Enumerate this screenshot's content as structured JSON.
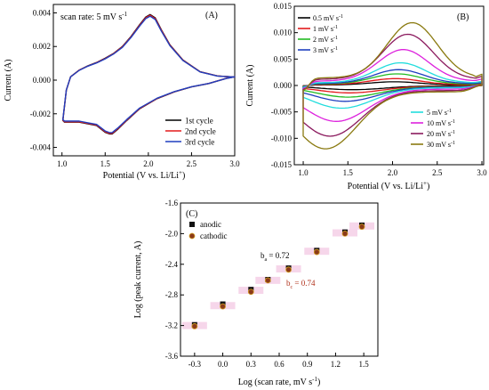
{
  "chart_data": [
    {
      "panel": "(A)",
      "type": "line",
      "annotation": "scan rate: 5 mV s",
      "annotation_sup": "-1",
      "xlabel": "Potential (V vs. Li/Li",
      "xlabel_sup": "+",
      "xlabel_end": ")",
      "ylabel": "Current (A)",
      "xlim": [
        0.9,
        3.0
      ],
      "ylim": [
        -0.0045,
        0.0045
      ],
      "xticks": [
        "1.0",
        "1.5",
        "2.0",
        "2.5",
        "3.0"
      ],
      "yticks": [
        "-0.004",
        "-0.002",
        "0.000",
        "0.002",
        "0.004"
      ],
      "legend": "bottom-right",
      "series": [
        {
          "name": "1st cycle",
          "color": "#000000",
          "scale": 1.0
        },
        {
          "name": "2nd cycle",
          "color": "#e31a1c",
          "scale": 0.99
        },
        {
          "name": "3rd cycle",
          "color": "#1f3fbf",
          "scale": 0.975
        }
      ],
      "upper_branch": {
        "x": [
          1.01,
          1.05,
          1.1,
          1.2,
          1.3,
          1.4,
          1.5,
          1.6,
          1.7,
          1.8,
          1.9,
          1.97,
          2.02,
          2.08,
          2.15,
          2.25,
          2.4,
          2.6,
          2.8,
          2.95,
          3.0
        ],
        "y": [
          -0.0024,
          -0.0006,
          0.0002,
          0.0006,
          0.00085,
          0.00105,
          0.0013,
          0.0016,
          0.002,
          0.0026,
          0.0033,
          0.00375,
          0.0039,
          0.0037,
          0.003,
          0.0021,
          0.0012,
          0.0005,
          0.00025,
          0.0002,
          0.0002
        ]
      },
      "lower_branch": {
        "x": [
          3.0,
          2.9,
          2.7,
          2.5,
          2.3,
          2.1,
          1.9,
          1.75,
          1.65,
          1.58,
          1.55,
          1.5,
          1.4,
          1.3,
          1.2,
          1.1,
          1.03,
          1.01
        ],
        "y": [
          0.0002,
          0.0001,
          -0.0002,
          -0.0004,
          -0.0007,
          -0.0011,
          -0.0017,
          -0.0024,
          -0.0029,
          -0.0032,
          -0.0032,
          -0.0031,
          -0.0027,
          -0.0026,
          -0.0025,
          -0.0025,
          -0.0025,
          -0.0024
        ]
      }
    },
    {
      "panel": "(B)",
      "type": "line",
      "xlabel": "Potential (V vs. Li/Li",
      "xlabel_sup": "+",
      "xlabel_end": ")",
      "ylabel": "Current (A)",
      "xlim": [
        0.9,
        3.02
      ],
      "ylim": [
        -0.015,
        0.015
      ],
      "xticks": [
        "1.0",
        "1.5",
        "2.0",
        "2.5",
        "3.0"
      ],
      "yticks": [
        "-0.015",
        "-0.010",
        "-0.005",
        "0.000",
        "0.005",
        "0.010",
        "0.015"
      ],
      "legend_left_entries": [
        "0.5",
        "1",
        "2",
        "3"
      ],
      "legend_right_entries": [
        "5",
        "10",
        "20",
        "30"
      ],
      "legend_unit": "mV s",
      "legend_unit_sup": "-1",
      "series": [
        {
          "name": "0.5",
          "color": "#000000",
          "ip": 0.0007,
          "in": -0.0008,
          "pa": 2.02,
          "pc": 1.55
        },
        {
          "name": "1",
          "color": "#e31a1c",
          "ip": 0.0013,
          "in": -0.0014,
          "pa": 2.03,
          "pc": 1.52
        },
        {
          "name": "2",
          "color": "#22bb22",
          "ip": 0.0022,
          "in": -0.0022,
          "pa": 2.05,
          "pc": 1.5
        },
        {
          "name": "3",
          "color": "#1f3fbf",
          "ip": 0.003,
          "in": -0.003,
          "pa": 2.07,
          "pc": 1.47
        },
        {
          "name": "5",
          "color": "#22dddd",
          "ip": 0.0043,
          "in": -0.0043,
          "pa": 2.09,
          "pc": 1.43
        },
        {
          "name": "10",
          "color": "#dd22dd",
          "ip": 0.0068,
          "in": -0.0068,
          "pa": 2.12,
          "pc": 1.37
        },
        {
          "name": "20",
          "color": "#8b1a5e",
          "ip": 0.0097,
          "in": -0.0096,
          "pa": 2.17,
          "pc": 1.3
        },
        {
          "name": "30",
          "color": "#8a7a10",
          "ip": 0.0119,
          "in": -0.012,
          "pa": 2.22,
          "pc": 1.25
        }
      ]
    },
    {
      "panel": "(C)",
      "type": "scatter",
      "xlabel": "Log (scan rate, mV s",
      "xlabel_sup": "-1",
      "xlabel_end": ")",
      "ylabel": "Log (peak current, A)",
      "xlim": [
        -0.45,
        1.65
      ],
      "ylim": [
        -3.6,
        -1.6
      ],
      "xticks": [
        "-0.3",
        "0.0",
        "0.3",
        "0.6",
        "0.9",
        "1.2",
        "1.5"
      ],
      "yticks": [
        "-1.6",
        "-2.0",
        "-2.4",
        "-2.8",
        "-3.2",
        "-3.6"
      ],
      "legend": "top-left",
      "series": [
        {
          "name": "anodic",
          "color": "#111111",
          "x": [
            -0.3,
            0.0,
            0.3,
            0.48,
            0.7,
            1.0,
            1.3,
            1.48
          ],
          "y": [
            -3.19,
            -2.92,
            -2.73,
            -2.6,
            -2.45,
            -2.22,
            -1.98,
            -1.89
          ]
        },
        {
          "name": "cathodic",
          "color": "#8b3a1a",
          "x": [
            -0.3,
            0.0,
            0.3,
            0.48,
            0.7,
            1.0,
            1.3,
            1.48
          ],
          "y": [
            -3.21,
            -2.95,
            -2.76,
            -2.61,
            -2.47,
            -2.24,
            -2.0,
            -1.91
          ]
        }
      ],
      "fit_band_points": [
        [
          -0.3,
          -3.2
        ],
        [
          0.0,
          -2.94
        ],
        [
          0.3,
          -2.74
        ],
        [
          0.48,
          -2.61
        ],
        [
          0.7,
          -2.46
        ],
        [
          1.0,
          -2.23
        ],
        [
          1.3,
          -1.99
        ],
        [
          1.48,
          -1.9
        ]
      ],
      "ba_label": "b",
      "ba_sub": "a",
      "ba_value": " = 0.72",
      "bc_label": "b",
      "bc_sub": "c",
      "bc_value": " = 0.74"
    }
  ]
}
